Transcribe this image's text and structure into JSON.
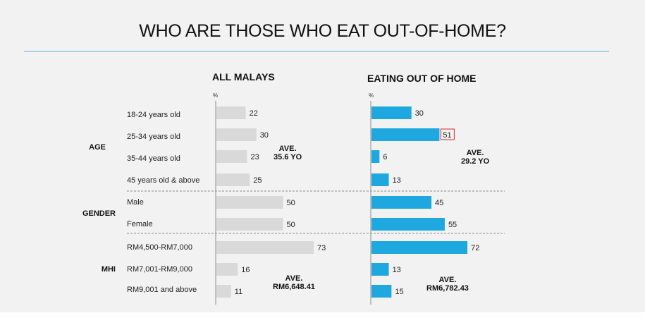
{
  "title": "WHO ARE THOSE WHO EAT OUT-OF-HOME?",
  "colors": {
    "all_malays_bar": "#d9d9d9",
    "eating_out_bar": "#1fa8e0",
    "highlight_box": "#d9262c",
    "title_rule": "#5aaee0"
  },
  "groups": [
    {
      "label": "AGE"
    },
    {
      "label": "GENDER"
    },
    {
      "label": "MHI"
    }
  ],
  "chart_data": {
    "type": "bar",
    "orientation": "horizontal",
    "title": "WHO ARE THOSE WHO EAT OUT-OF-HOME?",
    "unit": "%",
    "categories": [
      "18-24 years old",
      "25-34 years old",
      "35-44 years old",
      "45 years old & above",
      "Male",
      "Female",
      "RM4,500-RM7,000",
      "RM7,001-RM9,000",
      "RM9,001 and above"
    ],
    "category_groups": [
      "AGE",
      "AGE",
      "AGE",
      "AGE",
      "GENDER",
      "GENDER",
      "MHI",
      "MHI",
      "MHI"
    ],
    "panels": [
      {
        "name": "ALL MALAYS",
        "unit_label": "%",
        "values": [
          22,
          30,
          23,
          25,
          50,
          50,
          73,
          16,
          11
        ],
        "annotations": [
          {
            "group": "AGE",
            "lines": [
              "AVE.",
              "35.6 YO"
            ]
          },
          {
            "group": "MHI",
            "lines": [
              "AVE.",
              "RM6,648.41"
            ]
          }
        ]
      },
      {
        "name": "EATING OUT OF HOME",
        "unit_label": "%",
        "values": [
          30,
          51,
          6,
          13,
          45,
          55,
          72,
          13,
          15
        ],
        "highlighted_value": 51,
        "annotations": [
          {
            "group": "AGE",
            "lines": [
              "AVE.",
              "29.2 YO"
            ]
          },
          {
            "group": "MHI",
            "lines": [
              "AVE.",
              "RM6,782.43"
            ]
          }
        ]
      }
    ]
  }
}
